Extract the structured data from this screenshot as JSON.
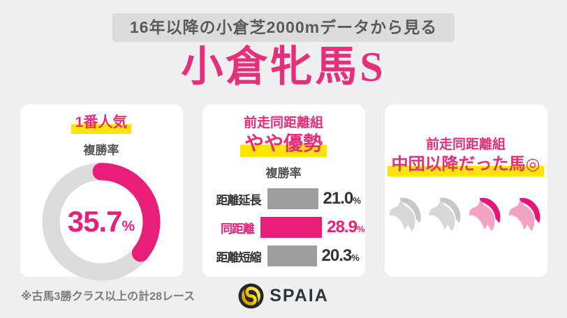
{
  "page": {
    "banner": "16年以降の小倉芝2000mデータから見る",
    "title": "小倉牝馬S",
    "footnote": "※古馬3勝クラス以上の計28レース",
    "logo_text": "SPAIA"
  },
  "colors": {
    "accent_pink": "#e62e7b",
    "chart_pink": "#e81e78",
    "bar_gray": "#9e9e9e",
    "donut_track_gray": "#dcdcdc",
    "highlight_yellow": "#ffe400",
    "horse_gray": "#d8d8d8",
    "horse_mane_gray": "#c7c7c7",
    "horse_pink": "#f2a3c4",
    "horse_mane_pink": "#e5157b",
    "banner_bg": "#dcdcdc",
    "banner_text": "#595959",
    "page_bg": "#efefef",
    "logo_yellow": "#fdd000"
  },
  "cards": {
    "popularity": {
      "heading": "1番人気",
      "subheading": "複勝率"
    },
    "distance": {
      "heading_line1": "前走同距離組",
      "heading_line2": "やや優勢",
      "subheading": "複勝率"
    },
    "position": {
      "heading_line1": "前走同距離組",
      "heading_line2": "中団以降だった馬◎",
      "horses": [
        "gray",
        "gray",
        "pink",
        "pink"
      ]
    }
  },
  "chart_data": [
    {
      "type": "donut",
      "title": "1番人気 複勝率",
      "value": 35.7,
      "max": 100,
      "unit": "%",
      "arc_color": "#e81e78",
      "track_color": "#dcdcdc",
      "start": "top",
      "direction": "clockwise"
    },
    {
      "type": "bar",
      "orientation": "horizontal",
      "title": "前走距離別 複勝率",
      "categories": [
        "距離延長",
        "同距離",
        "距離短縮"
      ],
      "values": [
        21.0,
        28.9,
        20.3
      ],
      "unit": "%",
      "highlight_index": 1,
      "highlight_color": "#e81e78",
      "bar_color": "#9e9e9e"
    },
    {
      "type": "pictogram",
      "title": "前走同距離組 中団以降だった馬◎",
      "icon": "horse-head",
      "total": 4,
      "highlighted": 2
    }
  ]
}
